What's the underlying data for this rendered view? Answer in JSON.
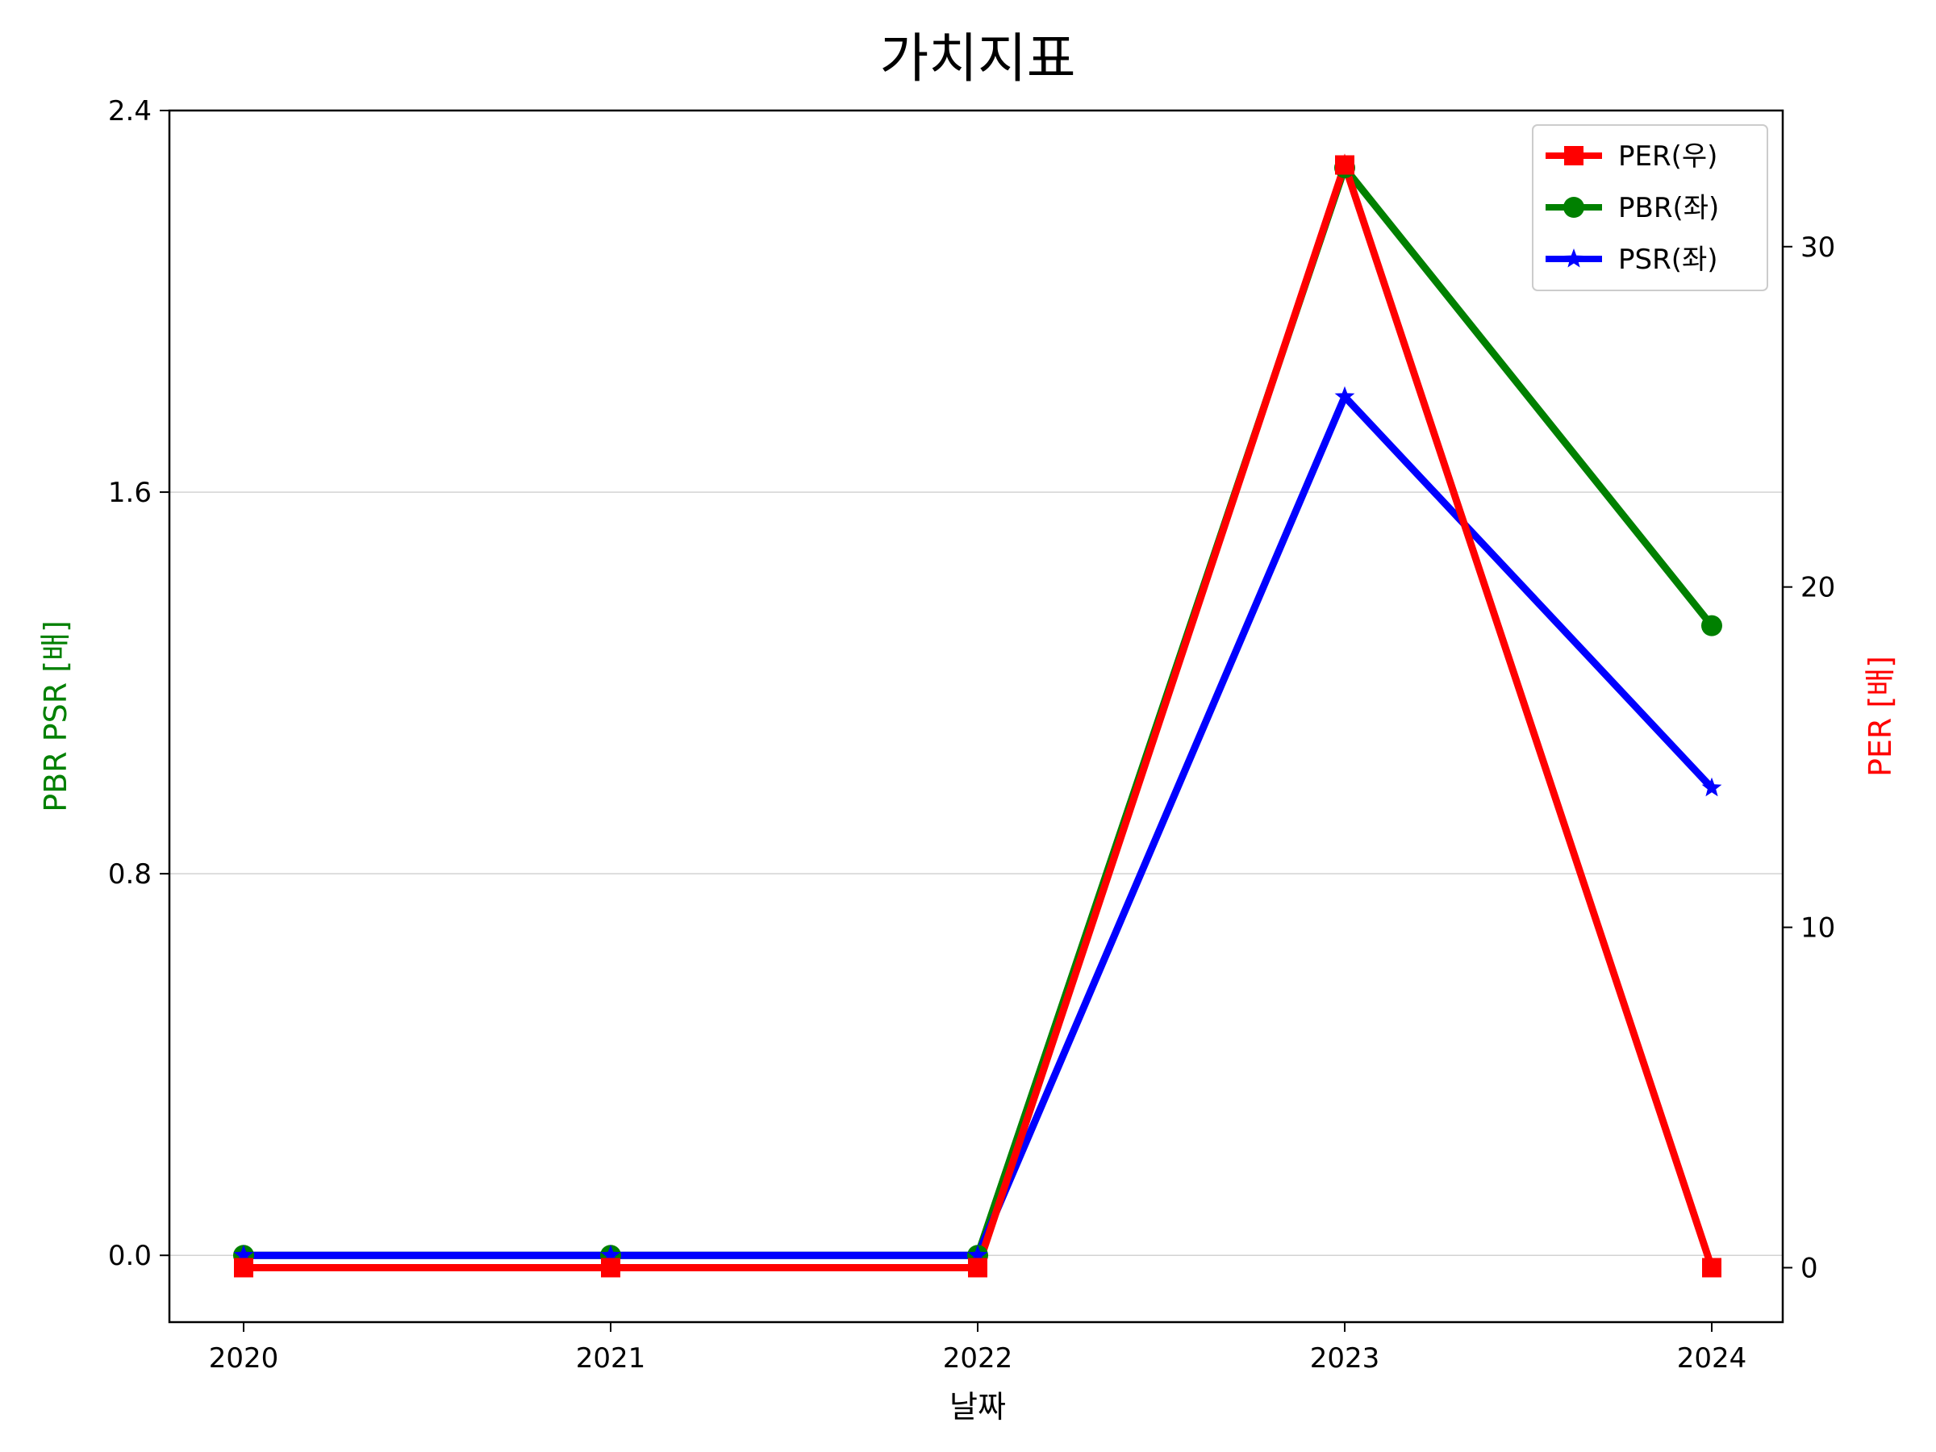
{
  "chart_data": {
    "type": "line",
    "title": "가치지표",
    "xlabel": "날짜",
    "ylabel_left": "PBR PSR [배]",
    "ylabel_right": "PER [배]",
    "categories": [
      "2020",
      "2021",
      "2022",
      "2023",
      "2024"
    ],
    "left_axis": {
      "ylim": [
        -0.14,
        2.4
      ],
      "ticks": [
        0.0,
        0.8,
        1.6,
        2.4
      ],
      "tick_labels": [
        "0.0",
        "0.8",
        "1.6",
        "2.4"
      ]
    },
    "right_axis": {
      "ylim": [
        -1.6,
        34.0
      ],
      "ticks": [
        0,
        10,
        20,
        30
      ],
      "tick_labels": [
        "0",
        "10",
        "20",
        "30"
      ]
    },
    "grid": "horizontal (left axis)",
    "legend_position": "top-right",
    "series": [
      {
        "name": "PER(우)",
        "axis": "right",
        "color": "#ff0000",
        "marker": "square",
        "values": [
          0,
          0,
          0,
          32.4,
          0
        ]
      },
      {
        "name": "PBR(좌)",
        "axis": "left",
        "color": "#008000",
        "marker": "circle",
        "values": [
          0,
          0,
          0,
          2.28,
          1.32
        ]
      },
      {
        "name": "PSR(좌)",
        "axis": "left",
        "color": "#0000ff",
        "marker": "star",
        "values": [
          0,
          0,
          0,
          1.8,
          0.98
        ]
      }
    ],
    "colors": {
      "left_label": "#008000",
      "right_label": "#ff0000"
    }
  }
}
